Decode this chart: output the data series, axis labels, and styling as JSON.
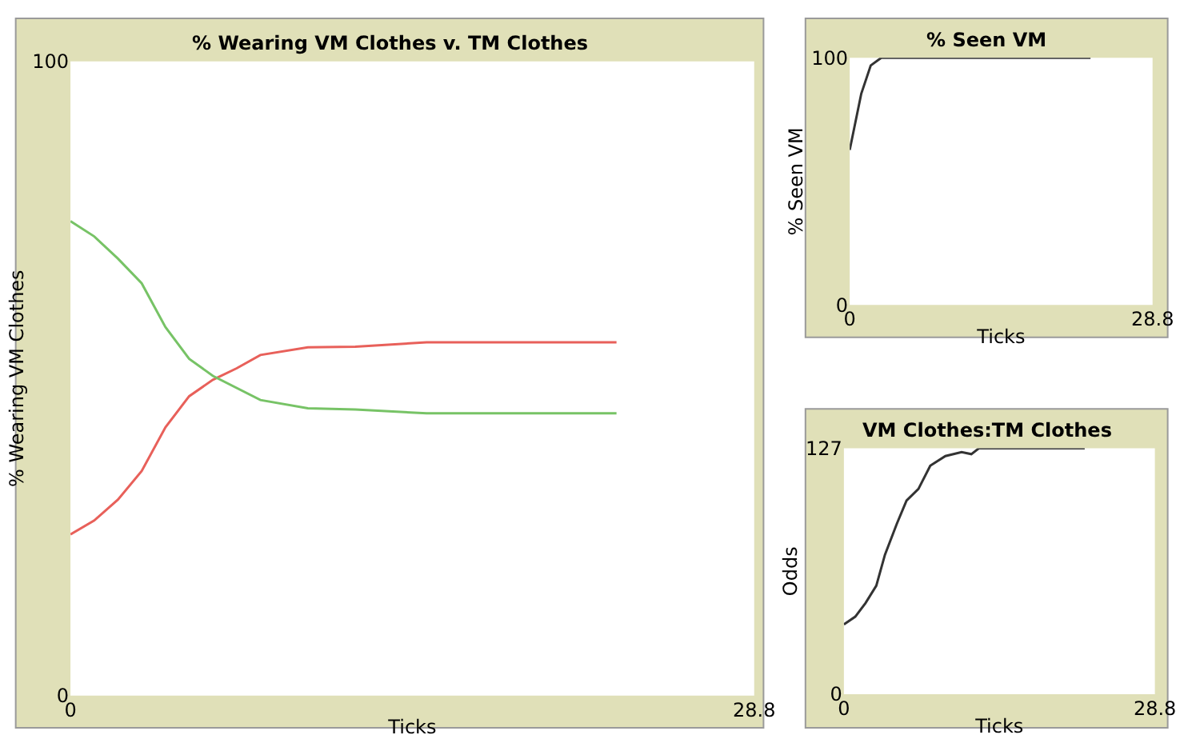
{
  "chart_data": [
    {
      "type": "line",
      "title": "% Wearing VM Clothes v. TM Clothes",
      "xlabel": "Ticks",
      "ylabel": "% Wearing VM Clothes",
      "xlim": [
        0,
        28.8
      ],
      "ylim": [
        0,
        100
      ],
      "xticks": [
        0,
        28.8
      ],
      "yticks": [
        0,
        100
      ],
      "series": [
        {
          "color": "#e8605a",
          "x": [
            0,
            1,
            2,
            3,
            4,
            5,
            6,
            7,
            8,
            10,
            12,
            15,
            23
          ],
          "values": [
            25.4,
            27.6,
            30.9,
            35.4,
            42.3,
            47.2,
            49.8,
            51.6,
            53.7,
            54.9,
            55.0,
            55.7,
            55.7
          ]
        },
        {
          "color": "#77c366",
          "x": [
            0,
            1,
            2,
            3,
            4,
            5,
            6,
            8,
            10,
            12,
            15,
            23
          ],
          "values": [
            74.8,
            72.4,
            68.9,
            65.0,
            58.1,
            53.1,
            50.4,
            46.6,
            45.3,
            45.1,
            44.5,
            44.5
          ]
        }
      ]
    },
    {
      "type": "line",
      "title": "% Seen VM",
      "xlabel": "Ticks",
      "ylabel": "% Seen VM",
      "xlim": [
        0,
        28.8
      ],
      "ylim": [
        0,
        100
      ],
      "xticks": [
        0,
        28.8
      ],
      "yticks": [
        0,
        100
      ],
      "series": [
        {
          "color": "#333333",
          "x": [
            0,
            1.1,
            2,
            3,
            22.9
          ],
          "values": [
            62.7,
            85.5,
            96.9,
            100,
            100
          ]
        }
      ]
    },
    {
      "type": "line",
      "title": "VM Clothes:TM Clothes",
      "xlabel": "Ticks",
      "ylabel": "Odds",
      "xlim": [
        0,
        28.8
      ],
      "ylim": [
        0,
        127
      ],
      "xticks": [
        0,
        28.8
      ],
      "yticks": [
        0,
        127
      ],
      "series": [
        {
          "color": "#333333",
          "x": [
            0,
            1.05,
            2,
            3,
            3.8,
            4.9,
            5.8,
            6.9,
            8,
            9.4,
            10.9,
            11.8,
            12.5,
            22.3
          ],
          "values": [
            36,
            40,
            47,
            56,
            72,
            88,
            100,
            106,
            118,
            123,
            125,
            124,
            127,
            127
          ]
        }
      ]
    }
  ]
}
